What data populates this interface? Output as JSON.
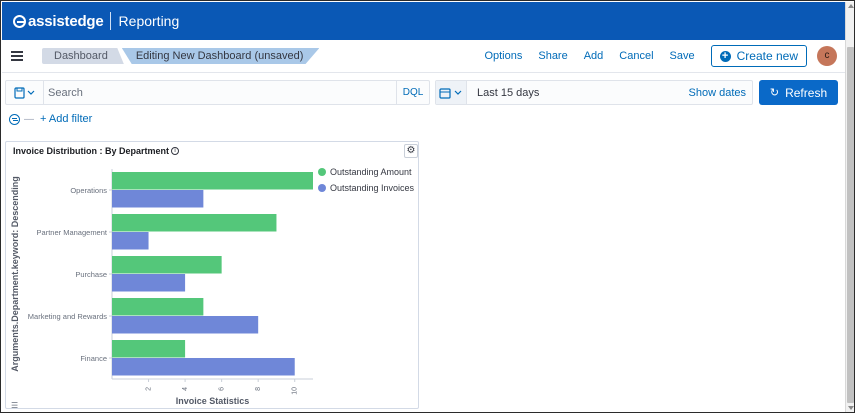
{
  "brand": {
    "logo_text": "assistedge",
    "app_name": "Reporting"
  },
  "header": {
    "breadcrumbs": [
      "Dashboard",
      "Editing New Dashboard (unsaved)"
    ],
    "links": [
      "Options",
      "Share",
      "Add",
      "Cancel",
      "Save"
    ],
    "create_label": "Create new",
    "avatar_initial": "c"
  },
  "query": {
    "placeholder": "Search",
    "language": "DQL",
    "date_range": "Last 15 days",
    "show_dates": "Show dates",
    "refresh_label": "Refresh"
  },
  "filters": {
    "add_filter": "+ Add filter"
  },
  "panel": {
    "title": "Invoice Distribution : By Department"
  },
  "colors": {
    "brand": "#0a58b5",
    "outstanding_amount": "#54c77a",
    "outstanding_invoices": "#6f87d8",
    "link": "#006bb8"
  },
  "chart_data": {
    "type": "bar",
    "orientation": "horizontal",
    "categories": [
      "Operations",
      "Partner Management",
      "Purchase",
      "Marketing and Rewards",
      "Finance"
    ],
    "series": [
      {
        "name": "Outstanding Amount",
        "values": [
          11,
          9,
          6,
          5,
          4
        ]
      },
      {
        "name": "Outstanding Invoices",
        "values": [
          5,
          2,
          4,
          8,
          10
        ]
      }
    ],
    "xlabel": "Invoice Statistics",
    "ylabel": "Arguments.Department.keyword: Descending",
    "xticks": [
      2,
      4,
      6,
      8,
      10
    ],
    "xlim": [
      0,
      11
    ],
    "legend": "top-right"
  }
}
